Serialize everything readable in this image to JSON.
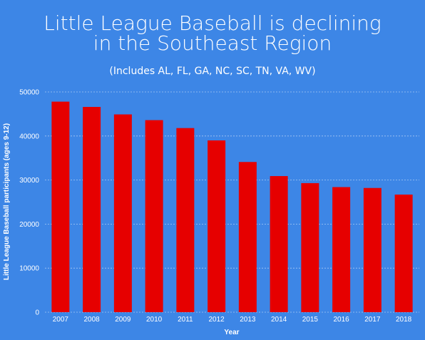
{
  "colors": {
    "background": "#3d86e6",
    "bar": "#e60000",
    "text": "#ffffff",
    "grid": "#ffffff"
  },
  "chart_data": {
    "type": "bar",
    "title_lines": [
      "Little League Baseball is declining",
      "in the Southeast Region"
    ],
    "subtitle": "(Includes AL, FL, GA, NC, SC, TN, VA, WV)",
    "xlabel": "Year",
    "ylabel": "Little League Baseball participants (ages 9-12)",
    "categories": [
      "2007",
      "2008",
      "2009",
      "2010",
      "2011",
      "2012",
      "2013",
      "2014",
      "2015",
      "2016",
      "2017",
      "2018"
    ],
    "values": [
      47800,
      46600,
      44900,
      43600,
      41800,
      39000,
      34100,
      30900,
      29300,
      28400,
      28200,
      26700
    ],
    "ylim": [
      0,
      50000
    ],
    "yticks": [
      "0",
      "10000",
      "20000",
      "30000",
      "40000",
      "50000"
    ],
    "grid": "horizontal dashed",
    "legend": "none"
  }
}
